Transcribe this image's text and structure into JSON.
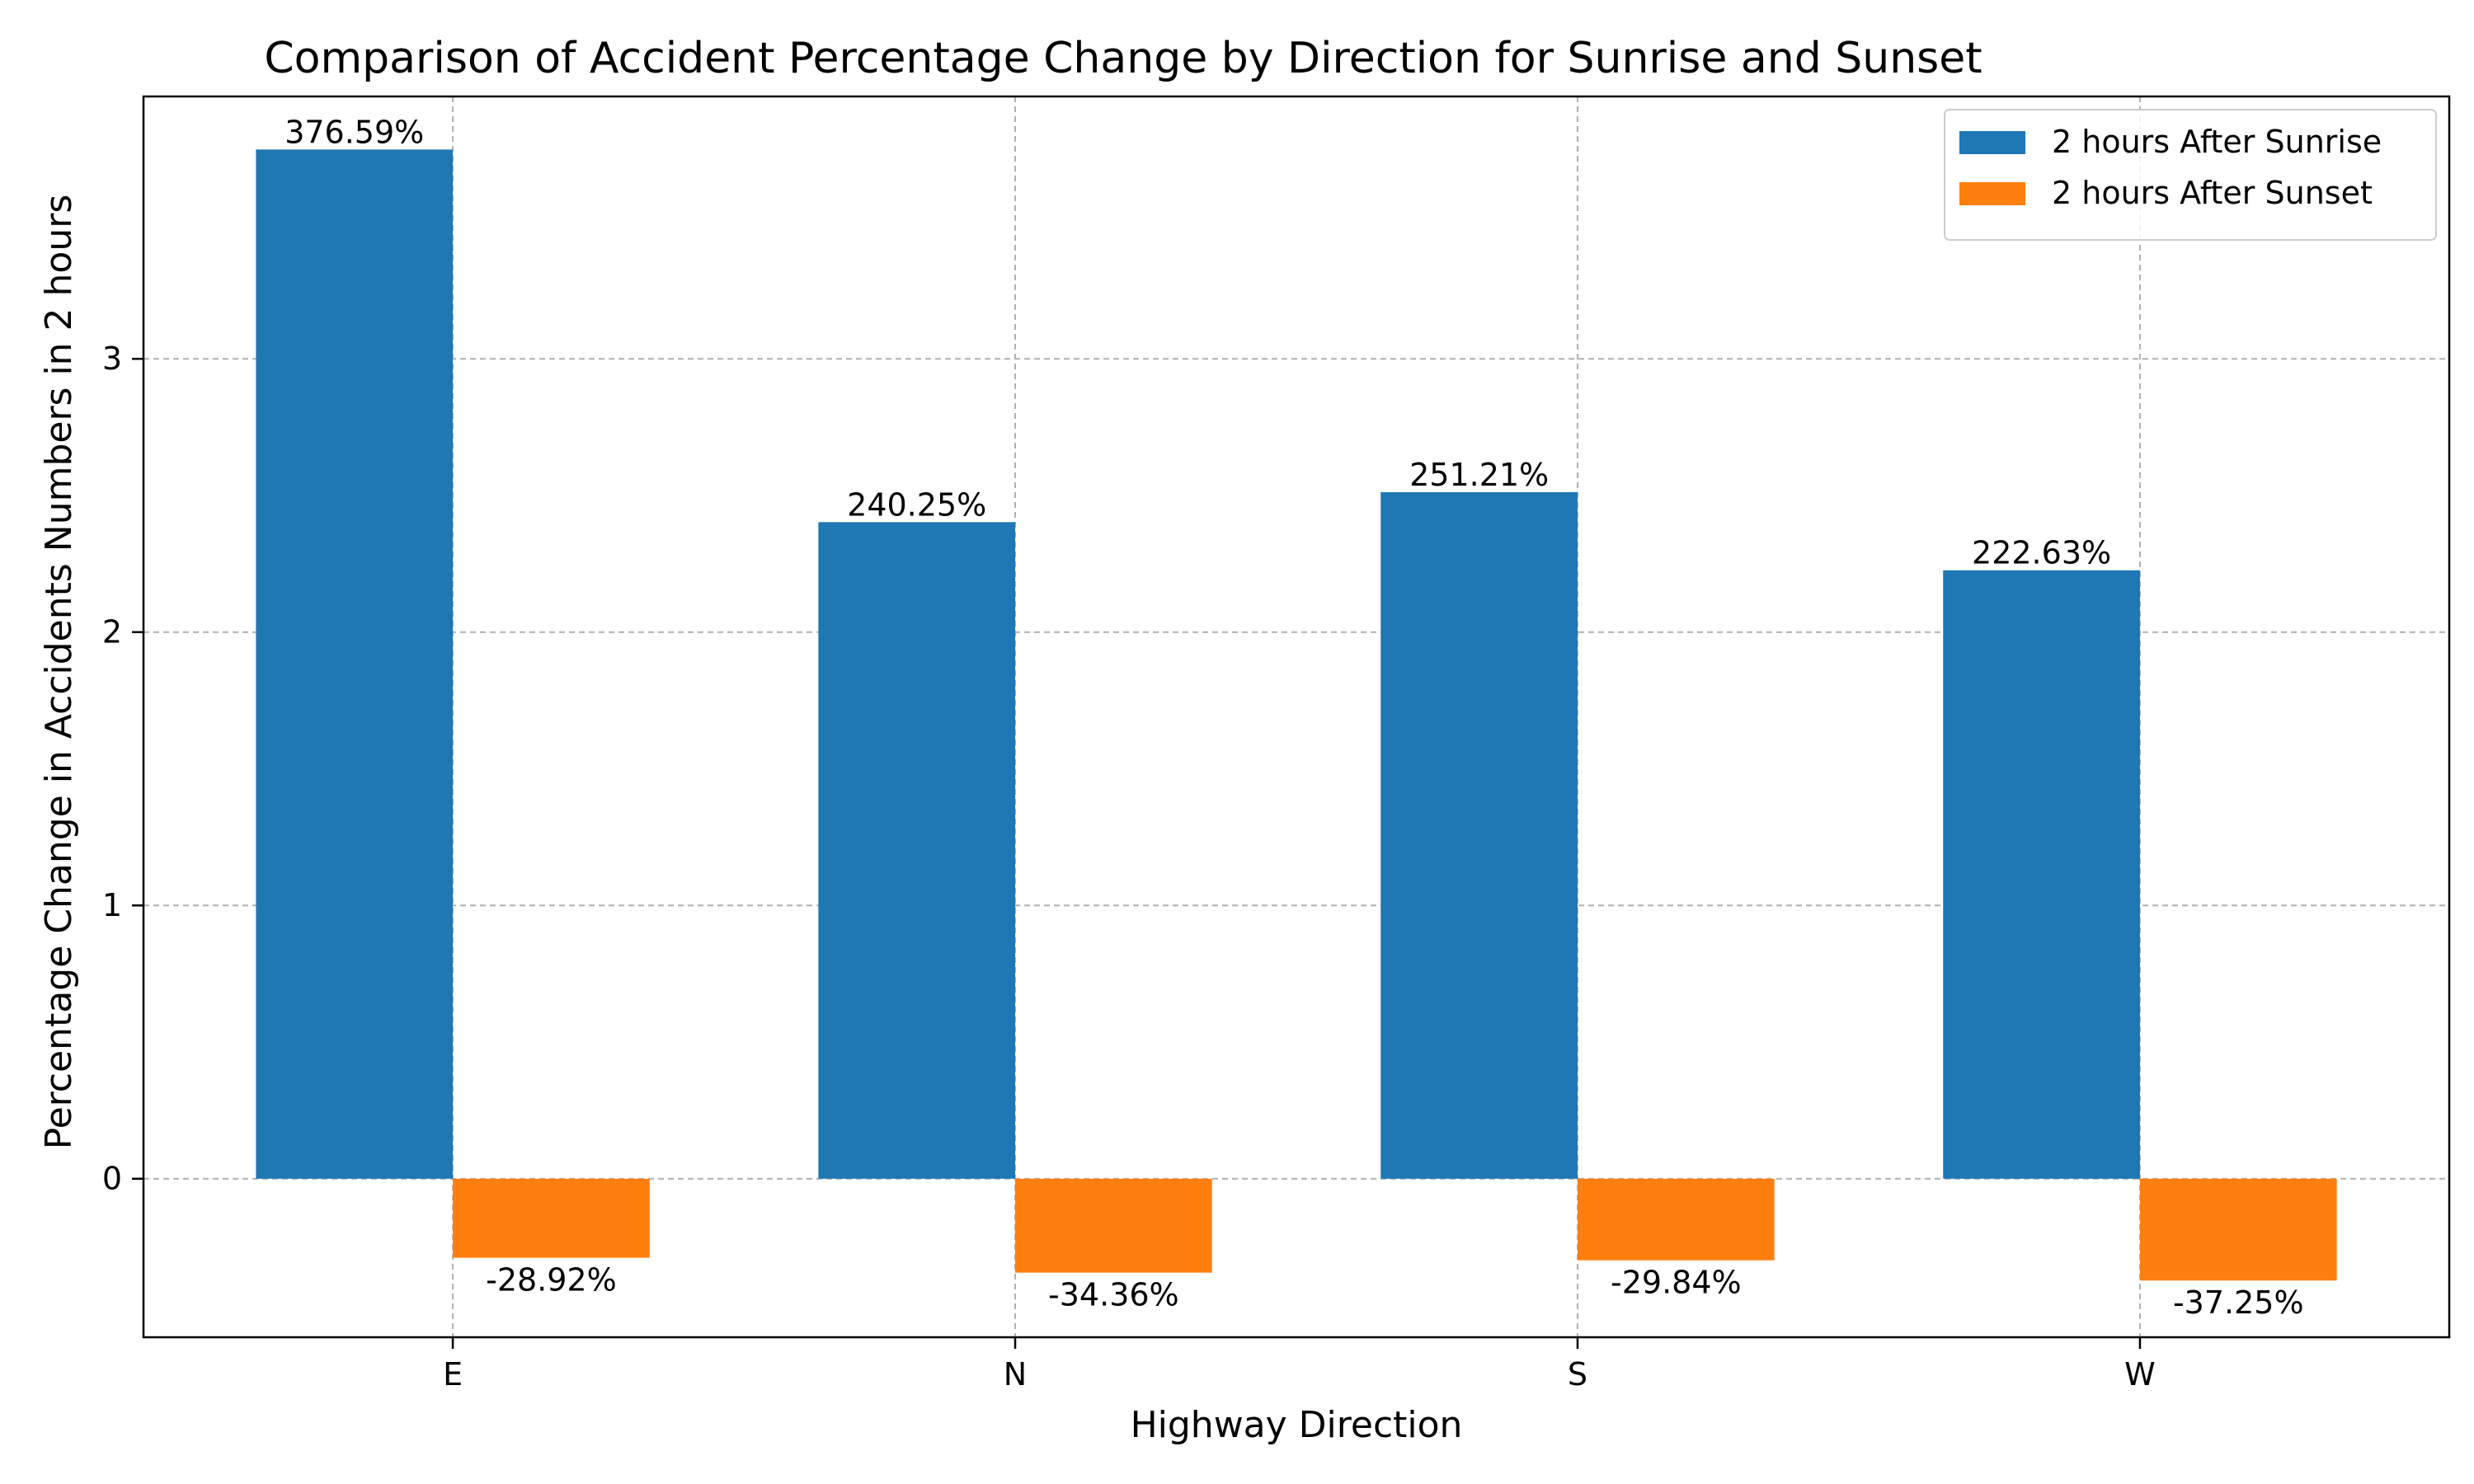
{
  "chart_data": {
    "type": "bar",
    "title": "Comparison of Accident Percentage Change by Direction for Sunrise and Sunset",
    "xlabel": "Highway Direction",
    "ylabel": "Percentage Change in Accidents Numbers in 2 hours",
    "categories": [
      "E",
      "N",
      "S",
      "W"
    ],
    "series": [
      {
        "name": "2 hours After Sunrise",
        "color": "#1f77b4",
        "values": [
          3.7659,
          2.4025,
          2.5121,
          2.2263
        ],
        "labels": [
          "376.59%",
          "240.25%",
          "251.21%",
          "222.63%"
        ]
      },
      {
        "name": "2 hours After Sunset",
        "color": "#ff7f0e",
        "values": [
          -0.2892,
          -0.3436,
          -0.2984,
          -0.3725
        ],
        "labels": [
          "-28.92%",
          "-34.36%",
          "-29.84%",
          "-37.25%"
        ]
      }
    ],
    "ylim": [
      -0.58,
      3.96
    ],
    "yticks": [
      0,
      1,
      2,
      3
    ],
    "ytick_labels": [
      "0",
      "1",
      "2",
      "3"
    ],
    "grid": true,
    "legend_position": "top-right"
  }
}
